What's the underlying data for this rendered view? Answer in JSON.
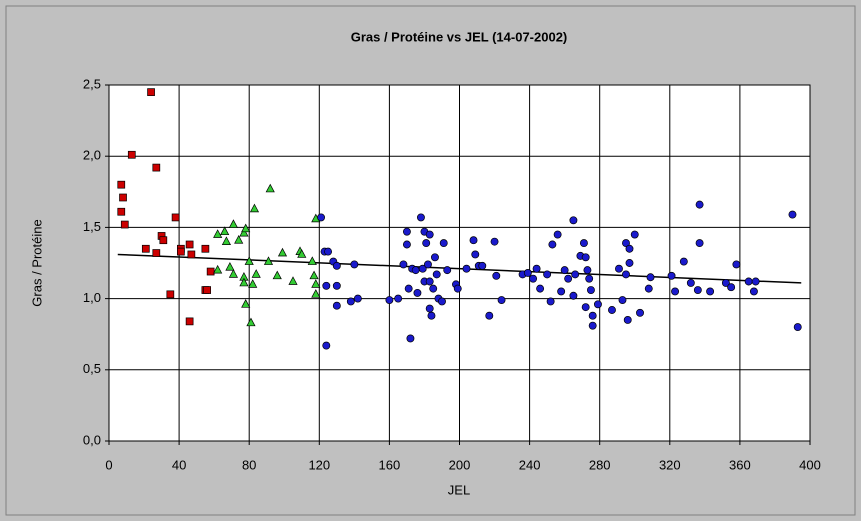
{
  "chart_data": {
    "type": "scatter",
    "title": "Gras  / Protéine vs JEL  (14-07-2002)",
    "x_label": "JEL",
    "y_label": "Gras  / Protéine",
    "xlim": [
      0,
      400
    ],
    "xticks": [
      0,
      40,
      80,
      120,
      160,
      200,
      240,
      280,
      320,
      360,
      400
    ],
    "ylim": [
      0,
      2.5
    ],
    "yticks": [
      {
        "value": 0,
        "label": "0,0"
      },
      {
        "value": 0.5,
        "label": "0,5"
      },
      {
        "value": 1,
        "label": "1,0"
      },
      {
        "value": 1.5,
        "label": "1,5"
      },
      {
        "value": 2,
        "label": "2,0"
      },
      {
        "value": 2.5,
        "label": "2,5"
      }
    ],
    "grid": true,
    "series": [
      {
        "color": "#cc0000",
        "marker": "square",
        "x": [
          7,
          8,
          7,
          9,
          13,
          24,
          27,
          38,
          21,
          27,
          30,
          31,
          41,
          46,
          47,
          55,
          35,
          41,
          46,
          55,
          56,
          58
        ],
        "values": [
          1.8,
          1.71,
          1.61,
          1.52,
          2.01,
          2.45,
          1.92,
          1.57,
          1.35,
          1.32,
          1.44,
          1.41,
          1.35,
          1.38,
          1.31,
          1.35,
          1.03,
          1.33,
          0.84,
          1.06,
          1.06,
          1.19
        ]
      },
      {
        "color": "#33cc33",
        "marker": "triangle",
        "x": [
          62,
          62,
          66,
          67,
          71,
          74,
          69,
          71,
          77,
          78,
          77,
          77,
          78,
          80,
          82,
          83,
          81,
          84,
          91,
          92,
          99,
          96,
          105,
          109,
          110,
          116,
          117,
          118,
          118,
          118
        ],
        "values": [
          1.2,
          1.45,
          1.47,
          1.4,
          1.52,
          1.41,
          1.22,
          1.17,
          1.46,
          1.49,
          1.15,
          1.11,
          0.96,
          1.26,
          1.1,
          1.63,
          0.83,
          1.17,
          1.26,
          1.77,
          1.32,
          1.16,
          1.12,
          1.33,
          1.31,
          1.26,
          1.16,
          1.56,
          1.1,
          1.03
        ]
      },
      {
        "color": "#1a1acc",
        "marker": "circle",
        "x": [
          121,
          123,
          125,
          124,
          124,
          128,
          130,
          130,
          130,
          138,
          140,
          142,
          160,
          165,
          168,
          170,
          170,
          171,
          172,
          173,
          175,
          176,
          178,
          179,
          180,
          181,
          180,
          182,
          183,
          183,
          183,
          184,
          185,
          186,
          187,
          188,
          190,
          191,
          193,
          198,
          199,
          204,
          208,
          209,
          211,
          213,
          217,
          220,
          221,
          224,
          236,
          239,
          242,
          244,
          246,
          250,
          252,
          253,
          256,
          258,
          260,
          262,
          265,
          265,
          266,
          269,
          271,
          272,
          273,
          272,
          274,
          275,
          276,
          276,
          279,
          287,
          291,
          293,
          295,
          295,
          297,
          297,
          296,
          300,
          303,
          308,
          309,
          321,
          323,
          328,
          332,
          337,
          337,
          336,
          343,
          352,
          355,
          358,
          365,
          368,
          369,
          390,
          393
        ],
        "values": [
          1.57,
          1.33,
          1.33,
          1.09,
          0.67,
          1.26,
          1.23,
          1.09,
          0.95,
          0.98,
          1.24,
          1.0,
          0.99,
          1.0,
          1.24,
          1.47,
          1.38,
          1.07,
          0.72,
          1.21,
          1.2,
          1.04,
          1.57,
          1.21,
          1.47,
          1.39,
          1.12,
          1.24,
          1.45,
          1.12,
          0.93,
          0.88,
          1.07,
          1.29,
          1.17,
          1.0,
          0.98,
          1.39,
          1.2,
          1.1,
          1.07,
          1.21,
          1.41,
          1.31,
          1.23,
          1.23,
          0.88,
          1.4,
          1.16,
          0.99,
          1.17,
          1.18,
          1.14,
          1.21,
          1.07,
          1.17,
          0.98,
          1.38,
          1.45,
          1.05,
          1.2,
          1.14,
          1.02,
          1.55,
          1.17,
          1.3,
          1.39,
          1.29,
          1.2,
          0.94,
          1.14,
          1.06,
          0.88,
          0.81,
          0.96,
          0.92,
          1.21,
          0.99,
          1.17,
          1.39,
          1.35,
          1.25,
          0.85,
          1.45,
          0.9,
          1.07,
          1.15,
          1.16,
          1.05,
          1.26,
          1.11,
          1.66,
          1.39,
          1.06,
          1.05,
          1.11,
          1.08,
          1.24,
          1.12,
          1.05,
          1.12,
          1.59,
          0.8
        ]
      }
    ],
    "trend_line": {
      "color": "#000000",
      "x": [
        5,
        395
      ],
      "values": [
        1.31,
        1.11
      ]
    }
  }
}
